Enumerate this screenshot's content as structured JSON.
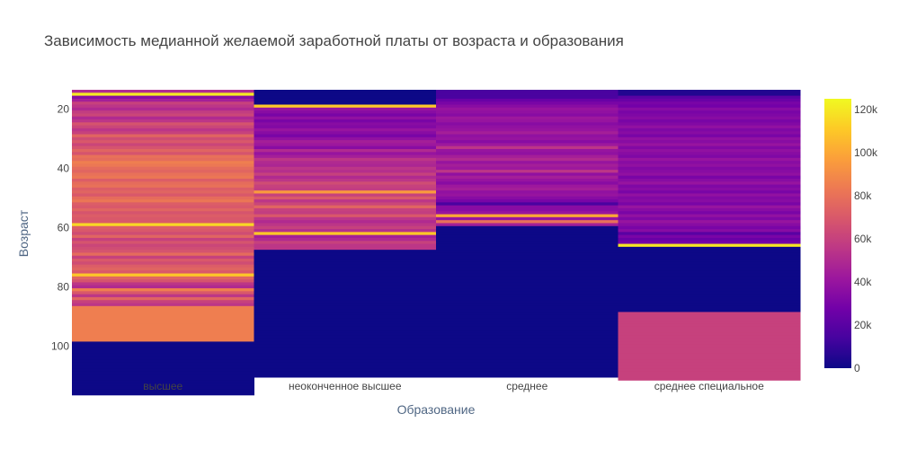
{
  "chart_data": {
    "type": "heatmap",
    "title": "Зависимость медианной желаемой заработной платы от возраста и образования",
    "xlabel": "Образование",
    "ylabel": "Возраст",
    "categories": [
      "высшее",
      "неоконченное высшее",
      "среднее",
      "среднее специальное"
    ],
    "y_range": [
      14,
      111
    ],
    "y_ticks": [
      20,
      40,
      60,
      80,
      100
    ],
    "colorbar": {
      "range": [
        0,
        125000
      ],
      "ticks": [
        0,
        20000,
        40000,
        60000,
        80000,
        100000,
        120000
      ],
      "tick_labels": [
        "0",
        "20k",
        "40k",
        "60k",
        "80k",
        "100k",
        "120k"
      ],
      "colorscale": [
        "#0d0887",
        "#46039f",
        "#7201a8",
        "#9c179e",
        "#bd3786",
        "#d8576b",
        "#ed7953",
        "#fb9f3a",
        "#fdca26",
        "#f0f921"
      ]
    },
    "series": [
      {
        "category": "высшее",
        "z": [
          50000,
          120000,
          35000,
          45000,
          60000,
          55000,
          50000,
          58000,
          62000,
          50000,
          55000,
          68000,
          62000,
          55000,
          60000,
          75000,
          65000,
          70000,
          62000,
          68000,
          75000,
          68000,
          80000,
          78000,
          85000,
          83000,
          78000,
          75000,
          80000,
          82000,
          72000,
          78000,
          80000,
          72000,
          75000,
          70000,
          78000,
          82000,
          72000,
          70000,
          75000,
          68000,
          72000,
          70000,
          70000,
          115000,
          72000,
          70000,
          65000,
          75000,
          60000,
          68000,
          62000,
          65000,
          68000,
          78000,
          60000,
          70000,
          65000,
          72000,
          75000,
          70000,
          110000,
          75000,
          68000,
          55000,
          50000,
          85000,
          70000,
          55000,
          75000,
          60000,
          55000,
          85000,
          85000,
          85000,
          85000,
          85000,
          85000,
          85000,
          85000,
          85000,
          85000,
          85000,
          85000,
          0,
          0,
          0,
          0,
          0,
          0,
          0,
          0,
          0,
          0,
          0,
          0,
          0,
          0,
          0,
          0,
          0,
          0
        ]
      },
      {
        "category": "неоконченное высшее",
        "z": [
          0,
          0,
          0,
          0,
          0,
          110000,
          40000,
          35000,
          30000,
          38000,
          30000,
          35000,
          33000,
          40000,
          35000,
          30000,
          38000,
          45000,
          42000,
          35000,
          50000,
          40000,
          45000,
          55000,
          50000,
          48000,
          55000,
          52000,
          60000,
          50000,
          55000,
          65000,
          60000,
          58000,
          95000,
          60000,
          70000,
          55000,
          62000,
          75000,
          60000,
          58000,
          70000,
          55000,
          50000,
          55000,
          60000,
          52000,
          110000,
          45000,
          50000,
          60000,
          55000,
          55000,
          0,
          0,
          0,
          0,
          0,
          0,
          0,
          0,
          0,
          0,
          0,
          0,
          0,
          0,
          0,
          0,
          0,
          0,
          0,
          0,
          0,
          0,
          0,
          0,
          0,
          0,
          0,
          0,
          0,
          0,
          0,
          0,
          0,
          0,
          0,
          0,
          0,
          0,
          0,
          0,
          0,
          0,
          0
        ]
      },
      {
        "category": "среднее",
        "z": [
          15000,
          15000,
          15000,
          25000,
          30000,
          35000,
          40000,
          38000,
          35000,
          42000,
          40000,
          35000,
          38000,
          40000,
          45000,
          38000,
          40000,
          35000,
          42000,
          55000,
          40000,
          38000,
          45000,
          50000,
          40000,
          45000,
          42000,
          55000,
          38000,
          45000,
          40000,
          35000,
          42000,
          45000,
          38000,
          40000,
          35000,
          30000,
          15000,
          35000,
          35000,
          40000,
          100000,
          40000,
          80000,
          45000,
          0,
          0,
          0,
          0,
          0,
          0,
          0,
          0,
          0,
          0,
          0,
          0,
          0,
          0,
          0,
          0,
          0,
          0,
          0,
          0,
          0,
          0,
          0,
          0,
          0,
          0,
          0,
          0,
          0,
          0,
          0,
          0,
          0,
          0,
          0,
          0,
          0,
          0,
          0,
          0,
          0,
          0,
          0,
          0,
          0,
          0,
          0,
          0,
          0,
          0,
          0
        ]
      },
      {
        "category": "среднее специальное",
        "z": [
          5000,
          5000,
          20000,
          25000,
          30000,
          28000,
          35000,
          30000,
          32000,
          35000,
          30000,
          33000,
          38000,
          32000,
          35000,
          30000,
          38000,
          35000,
          40000,
          33000,
          38000,
          35000,
          32000,
          40000,
          35000,
          38000,
          33000,
          35000,
          38000,
          30000,
          35000,
          40000,
          32000,
          35000,
          30000,
          38000,
          33000,
          35000,
          30000,
          40000,
          35000,
          30000,
          38000,
          32000,
          40000,
          35000,
          30000,
          35000,
          20000,
          30000,
          25000,
          28000,
          120000,
          0,
          0,
          0,
          0,
          0,
          0,
          0,
          0,
          0,
          0,
          0,
          0,
          0,
          0,
          0,
          0,
          0,
          0,
          0,
          0,
          0,
          0,
          60000,
          60000,
          60000,
          60000,
          60000,
          60000,
          60000,
          60000,
          60000,
          60000,
          60000,
          60000,
          60000,
          60000,
          60000,
          60000,
          60000,
          60000,
          60000,
          60000,
          60000,
          60000,
          60000
        ]
      }
    ]
  }
}
